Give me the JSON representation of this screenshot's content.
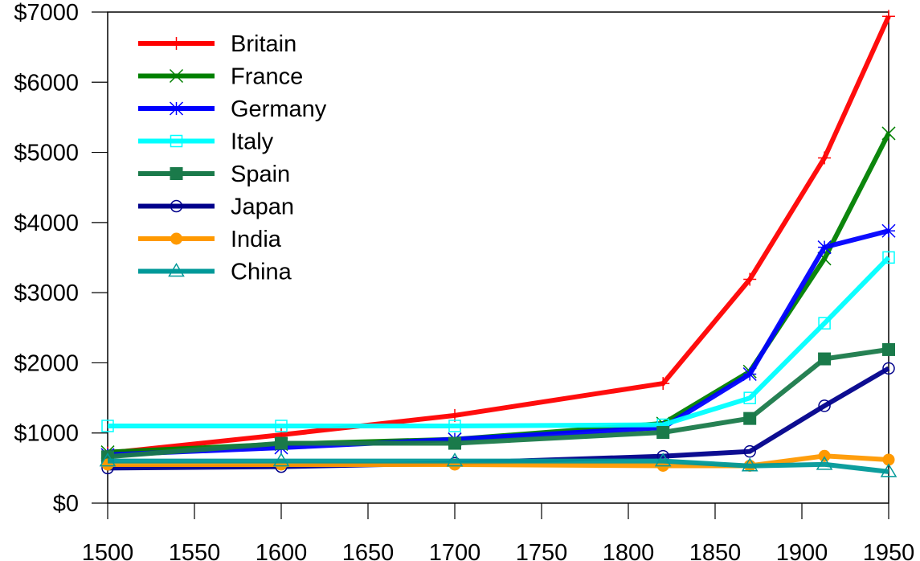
{
  "chart_data": {
    "type": "line",
    "title": "",
    "xlabel": "",
    "ylabel": "",
    "xlim": [
      1500,
      1950
    ],
    "ylim": [
      0,
      7000
    ],
    "grid": false,
    "legend_position": "upper-left",
    "x_ticks": [
      "1500",
      "1550",
      "1600",
      "1650",
      "1700",
      "1750",
      "1800",
      "1850",
      "1900",
      "1950"
    ],
    "y_ticks": [
      "$0",
      "$1000",
      "$2000",
      "$3000",
      "$4000",
      "$5000",
      "$6000",
      "$7000"
    ],
    "x": [
      1500,
      1600,
      1700,
      1820,
      1870,
      1913,
      1950
    ],
    "series": [
      {
        "name": "Britain",
        "color": "#ff0000",
        "marker": "plus",
        "values": [
          714,
          974,
          1250,
          1706,
          3190,
          4921,
          6939
        ]
      },
      {
        "name": "France",
        "color": "#008000",
        "marker": "x",
        "values": [
          727,
          841,
          910,
          1135,
          1876,
          3485,
          5271
        ]
      },
      {
        "name": "Germany",
        "color": "#0000ff",
        "marker": "star",
        "values": [
          688,
          791,
          910,
          1077,
          1839,
          3648,
          3881
        ]
      },
      {
        "name": "Italy",
        "color": "#00ffff",
        "marker": "square-open",
        "values": [
          1100,
          1100,
          1100,
          1117,
          1499,
          2564,
          3502
        ]
      },
      {
        "name": "Spain",
        "color": "#1a7a4a",
        "marker": "square-filled",
        "values": [
          661,
          853,
          853,
          1008,
          1207,
          2056,
          2189
        ]
      },
      {
        "name": "Japan",
        "color": "#00008b",
        "marker": "circle-open",
        "values": [
          500,
          520,
          570,
          669,
          737,
          1387,
          1921
        ]
      },
      {
        "name": "India",
        "color": "#ff9900",
        "marker": "circle-filled",
        "values": [
          550,
          550,
          550,
          533,
          533,
          673,
          619
        ]
      },
      {
        "name": "China",
        "color": "#009999",
        "marker": "triangle-open",
        "values": [
          600,
          600,
          600,
          600,
          530,
          552,
          448
        ]
      }
    ]
  }
}
